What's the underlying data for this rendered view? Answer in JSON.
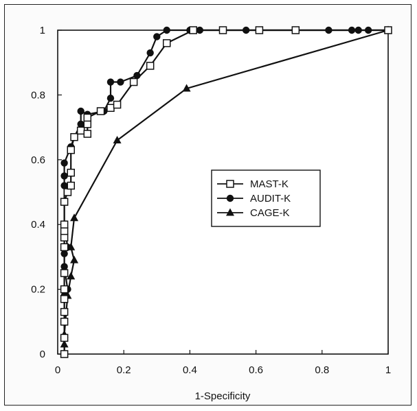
{
  "chart_data": {
    "type": "line",
    "title": "",
    "xlabel": "1-Specificity",
    "ylabel": "",
    "xlim": [
      0,
      1
    ],
    "ylim": [
      0,
      1
    ],
    "x_ticks": [
      "0",
      "0.2",
      "0.4",
      "0.6",
      "0.8",
      "1"
    ],
    "y_ticks": [
      "0",
      "0.2",
      "0.4",
      "0.6",
      "0.8",
      "1"
    ],
    "grid": false,
    "legend_position": "center-right",
    "series": [
      {
        "name": "MAST-K",
        "marker": "open-square",
        "color": "#111111",
        "points": [
          [
            0.02,
            0.0
          ],
          [
            0.02,
            0.05
          ],
          [
            0.02,
            0.1
          ],
          [
            0.02,
            0.13
          ],
          [
            0.02,
            0.17
          ],
          [
            0.02,
            0.2
          ],
          [
            0.02,
            0.25
          ],
          [
            0.02,
            0.33
          ],
          [
            0.02,
            0.36
          ],
          [
            0.02,
            0.38
          ],
          [
            0.02,
            0.4
          ],
          [
            0.02,
            0.47
          ],
          [
            0.03,
            0.5
          ],
          [
            0.04,
            0.52
          ],
          [
            0.04,
            0.56
          ],
          [
            0.04,
            0.63
          ],
          [
            0.05,
            0.67
          ],
          [
            0.07,
            0.69
          ],
          [
            0.09,
            0.68
          ],
          [
            0.09,
            0.71
          ],
          [
            0.09,
            0.73
          ],
          [
            0.13,
            0.75
          ],
          [
            0.16,
            0.76
          ],
          [
            0.18,
            0.77
          ],
          [
            0.23,
            0.84
          ],
          [
            0.28,
            0.89
          ],
          [
            0.33,
            0.96
          ],
          [
            0.41,
            1.0
          ],
          [
            0.5,
            1.0
          ],
          [
            0.61,
            1.0
          ],
          [
            0.72,
            1.0
          ],
          [
            1.0,
            1.0
          ]
        ]
      },
      {
        "name": "AUDIT-K",
        "marker": "filled-circle",
        "color": "#111111",
        "points": [
          [
            0.02,
            0.0
          ],
          [
            0.02,
            0.05
          ],
          [
            0.02,
            0.1
          ],
          [
            0.02,
            0.18
          ],
          [
            0.03,
            0.2
          ],
          [
            0.02,
            0.27
          ],
          [
            0.02,
            0.31
          ],
          [
            0.03,
            0.33
          ],
          [
            0.02,
            0.4
          ],
          [
            0.02,
            0.52
          ],
          [
            0.02,
            0.55
          ],
          [
            0.02,
            0.59
          ],
          [
            0.04,
            0.64
          ],
          [
            0.05,
            0.67
          ],
          [
            0.07,
            0.71
          ],
          [
            0.07,
            0.75
          ],
          [
            0.09,
            0.74
          ],
          [
            0.14,
            0.75
          ],
          [
            0.16,
            0.79
          ],
          [
            0.16,
            0.84
          ],
          [
            0.19,
            0.84
          ],
          [
            0.24,
            0.86
          ],
          [
            0.28,
            0.93
          ],
          [
            0.3,
            0.98
          ],
          [
            0.33,
            1.0
          ],
          [
            0.4,
            1.0
          ],
          [
            0.43,
            1.0
          ],
          [
            0.5,
            1.0
          ],
          [
            0.57,
            1.0
          ],
          [
            0.72,
            1.0
          ],
          [
            0.82,
            1.0
          ],
          [
            0.89,
            1.0
          ],
          [
            0.91,
            1.0
          ],
          [
            0.94,
            1.0
          ],
          [
            1.0,
            1.0
          ]
        ]
      },
      {
        "name": "CAGE-K",
        "marker": "filled-triangle",
        "color": "#111111",
        "points": [
          [
            0.02,
            0.0
          ],
          [
            0.02,
            0.03
          ],
          [
            0.02,
            0.06
          ],
          [
            0.03,
            0.18
          ],
          [
            0.04,
            0.24
          ],
          [
            0.05,
            0.29
          ],
          [
            0.04,
            0.33
          ],
          [
            0.05,
            0.42
          ],
          [
            0.18,
            0.66
          ],
          [
            0.39,
            0.82
          ],
          [
            1.0,
            1.0
          ]
        ]
      }
    ]
  }
}
